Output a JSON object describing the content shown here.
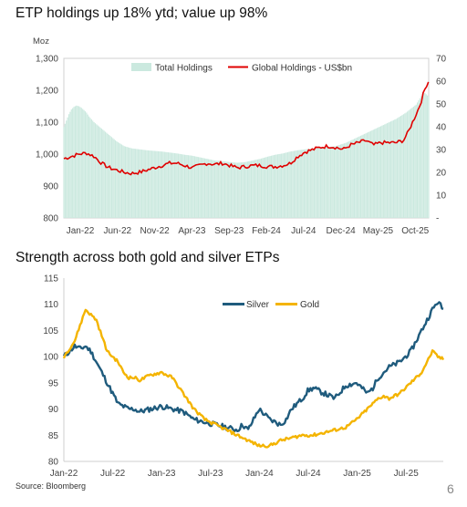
{
  "page": {
    "source": "Source: Bloomberg",
    "page_number": "6"
  },
  "chart_data": [
    {
      "type": "area",
      "title": "ETP holdings up 18% ytd; value up 98%",
      "y_left_unit": "Moz",
      "y_left_ticks": [
        "800",
        "900",
        "1,000",
        "1,100",
        "1,200",
        "1,300"
      ],
      "y_left_range": [
        800,
        1300
      ],
      "y_right_ticks": [
        "-",
        "10",
        "20",
        "30",
        "40",
        "50",
        "60",
        "70"
      ],
      "y_right_range": [
        0,
        70
      ],
      "x_ticks": [
        "Jan-22",
        "Jun-22",
        "Nov-22",
        "Apr-23",
        "Sep-23",
        "Feb-24",
        "Jul-24",
        "Dec-24",
        "May-25",
        "Oct-25"
      ],
      "legend_position": "top-center",
      "series": [
        {
          "name": "Total Holdings",
          "axis": "left",
          "style": "area",
          "color": "#cbe9df",
          "x": [
            0,
            2,
            3,
            4,
            5,
            6,
            7,
            8,
            9,
            10,
            12,
            15,
            18,
            21,
            24,
            27,
            30,
            33,
            36,
            39,
            42,
            45,
            48,
            51,
            54,
            57,
            60,
            63,
            66,
            69,
            72,
            75,
            78,
            81,
            84,
            87,
            90,
            93,
            96,
            99,
            102,
            105,
            108,
            112,
            116,
            120,
            124,
            128,
            132,
            136,
            140,
            143,
            145
          ],
          "values": [
            1085,
            1125,
            1140,
            1148,
            1152,
            1150,
            1145,
            1138,
            1130,
            1118,
            1100,
            1080,
            1060,
            1040,
            1025,
            1018,
            1015,
            1012,
            1010,
            1008,
            1005,
            1002,
            998,
            995,
            990,
            985,
            980,
            978,
            975,
            973,
            975,
            980,
            985,
            992,
            998,
            1002,
            1008,
            1012,
            1015,
            1018,
            1020,
            1022,
            1025,
            1035,
            1050,
            1065,
            1080,
            1095,
            1110,
            1130,
            1155,
            1195,
            1180
          ]
        },
        {
          "name": "Global Holdings - US$bn",
          "axis": "right",
          "style": "line",
          "color": "#e00000",
          "x": [
            0,
            3,
            6,
            9,
            12,
            15,
            18,
            21,
            24,
            27,
            30,
            33,
            36,
            39,
            42,
            45,
            48,
            51,
            54,
            57,
            60,
            63,
            66,
            69,
            72,
            75,
            78,
            81,
            84,
            87,
            90,
            93,
            96,
            99,
            102,
            105,
            108,
            111,
            114,
            117,
            120,
            123,
            126,
            129,
            132,
            135,
            137,
            139,
            141,
            142,
            143,
            144,
            145
          ],
          "values": [
            26,
            27,
            28,
            28.5,
            27,
            24,
            22,
            21,
            20,
            19.5,
            20,
            21,
            22,
            23,
            24,
            24,
            23,
            22,
            23,
            24,
            23.5,
            24,
            23,
            22,
            22.5,
            23,
            23,
            22.5,
            22.5,
            23,
            24,
            27,
            29,
            30,
            31,
            31.5,
            31,
            30,
            32,
            33,
            34,
            32,
            33,
            33,
            33,
            34,
            38,
            43,
            48,
            51,
            55,
            58,
            60
          ]
        }
      ]
    },
    {
      "type": "line",
      "title": "Strength across both gold and silver ETPs",
      "y_ticks": [
        "80",
        "85",
        "90",
        "95",
        "100",
        "105",
        "110",
        "115"
      ],
      "y_range": [
        80,
        115
      ],
      "x_ticks": [
        "Jan-22",
        "Jul-22",
        "Jan-23",
        "Jul-23",
        "Jan-24",
        "Jul-24",
        "Jan-25",
        "Jul-25"
      ],
      "legend_position": "top-center",
      "series": [
        {
          "name": "Silver",
          "color": "#1f5b7d",
          "x": [
            0,
            1,
            2,
            3,
            4,
            5,
            6,
            7,
            8,
            9,
            10,
            11,
            12,
            13,
            14,
            16,
            18,
            20,
            22,
            24,
            26,
            28,
            30,
            32,
            33,
            34,
            35,
            36,
            38,
            40,
            41,
            42,
            43,
            44,
            45,
            46,
            48,
            50,
            52,
            54,
            56,
            57,
            58,
            59,
            60,
            61,
            62,
            63,
            64,
            65,
            66,
            67,
            68,
            69,
            70
          ],
          "values": [
            100,
            101,
            102,
            101.5,
            102,
            101,
            99,
            97,
            95,
            93,
            91,
            90.5,
            90,
            90,
            89.5,
            90,
            90.5,
            90,
            89.5,
            88,
            87.5,
            87,
            86.5,
            86,
            87,
            86,
            88,
            90,
            88,
            87,
            88,
            90,
            91,
            92,
            93.5,
            94,
            93,
            92,
            94.5,
            95,
            93,
            94,
            96,
            97,
            98,
            98.5,
            99,
            100,
            101,
            103,
            105,
            107,
            109,
            110.5,
            109
          ]
        },
        {
          "name": "Gold",
          "color": "#f4b400",
          "x": [
            0,
            1,
            2,
            3,
            4,
            5,
            6,
            7,
            8,
            9,
            10,
            11,
            12,
            13,
            14,
            16,
            18,
            20,
            22,
            24,
            26,
            28,
            30,
            32,
            34,
            36,
            38,
            40,
            42,
            44,
            46,
            48,
            50,
            52,
            54,
            56,
            57,
            58,
            59,
            60,
            61,
            62,
            63,
            64,
            65,
            66,
            67,
            68,
            69,
            70
          ],
          "values": [
            100,
            101.5,
            103,
            106,
            109,
            108,
            107,
            104,
            101,
            100,
            99,
            97,
            96,
            96,
            95.5,
            96.5,
            97,
            96,
            93,
            90,
            88,
            87,
            86,
            85,
            84,
            83,
            83,
            84,
            84.5,
            85,
            85,
            85.5,
            86,
            86.5,
            88,
            90,
            91,
            92,
            92.5,
            92,
            92.5,
            93,
            94,
            95,
            96,
            97,
            99,
            101,
            100,
            99.5
          ]
        }
      ]
    }
  ]
}
